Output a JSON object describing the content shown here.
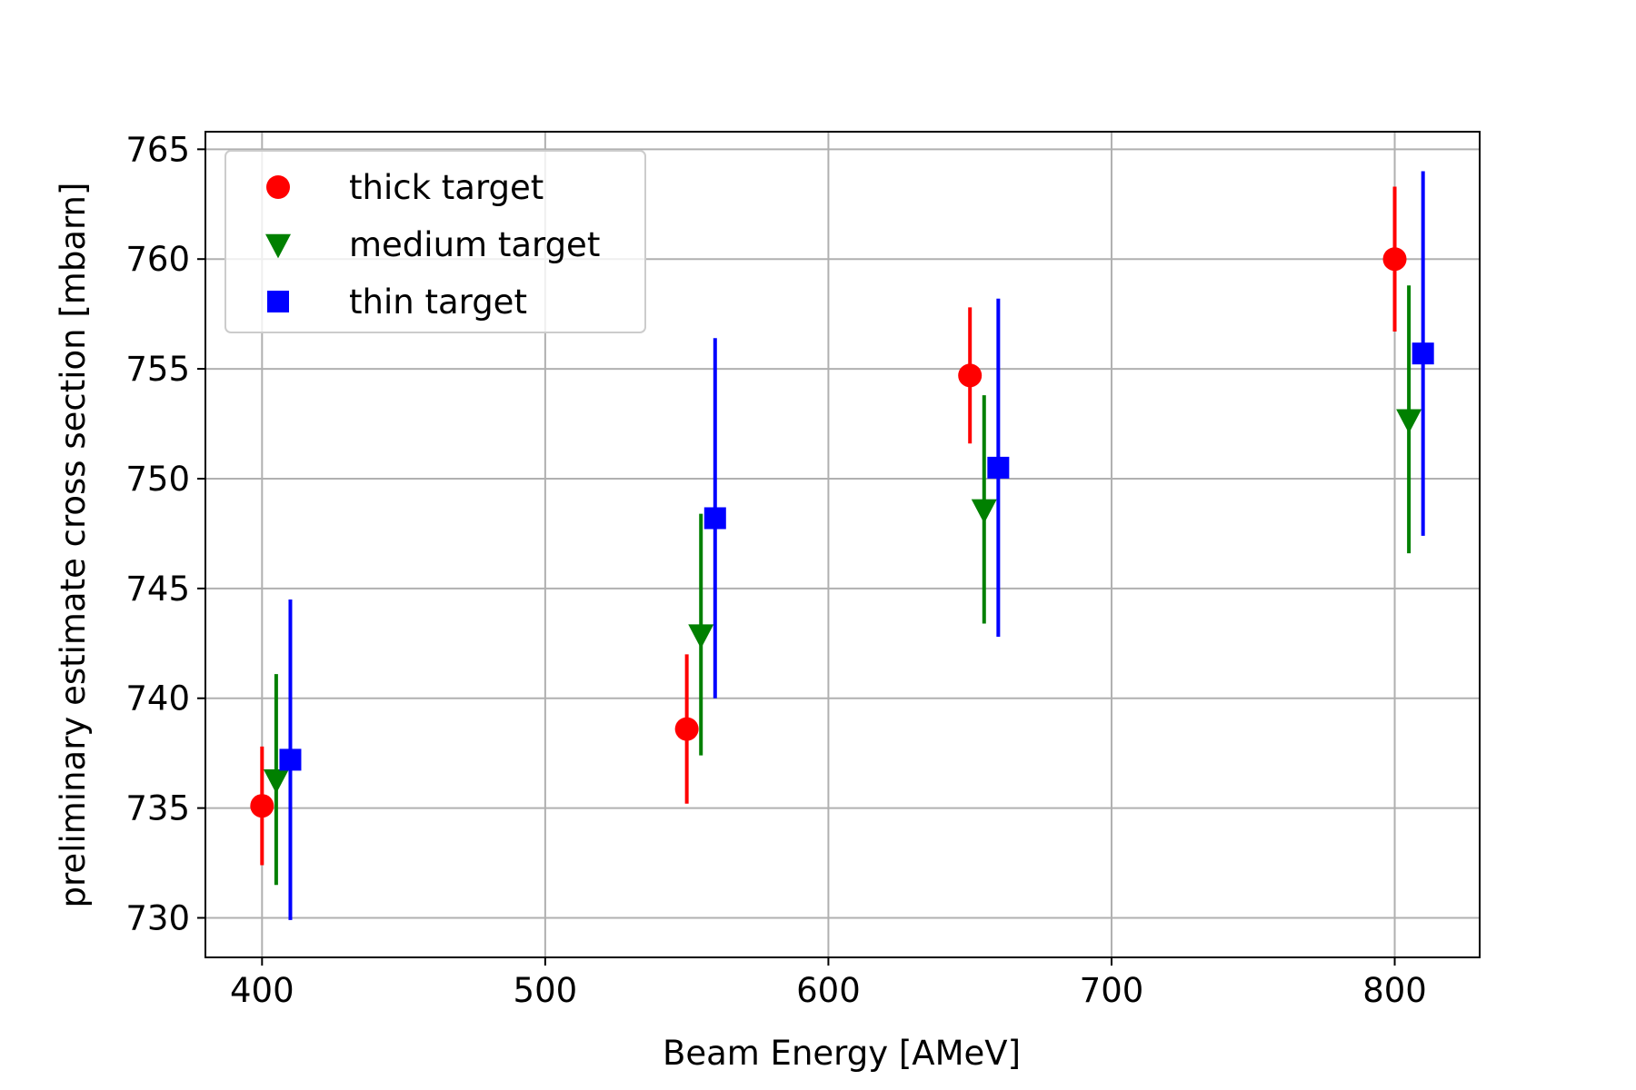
{
  "chart_data": {
    "type": "scatter",
    "title": "",
    "xlabel": "Beam Energy [AMeV]",
    "ylabel": "preliminary estimate cross section [mbarn]",
    "xlim": [
      380,
      830
    ],
    "ylim": [
      728.2,
      765.8
    ],
    "xticks": [
      400,
      500,
      600,
      700,
      800
    ],
    "yticks": [
      730,
      735,
      740,
      745,
      750,
      755,
      760,
      765
    ],
    "grid": true,
    "legend_position": "top-left",
    "series": [
      {
        "name": "thick target",
        "marker": "circle",
        "color": "#ff0000",
        "points": [
          {
            "x": 400,
            "y": 735.1,
            "err": 2.7
          },
          {
            "x": 550,
            "y": 738.6,
            "err": 3.4
          },
          {
            "x": 650,
            "y": 754.7,
            "err": 3.1
          },
          {
            "x": 800,
            "y": 760.0,
            "err": 3.3
          }
        ]
      },
      {
        "name": "medium target",
        "marker": "triangle-down",
        "color": "#008000",
        "points": [
          {
            "x": 405,
            "y": 736.3,
            "err": 4.8
          },
          {
            "x": 555,
            "y": 742.9,
            "err": 5.5
          },
          {
            "x": 655,
            "y": 748.6,
            "err": 5.2
          },
          {
            "x": 805,
            "y": 752.7,
            "err": 6.1
          }
        ]
      },
      {
        "name": "thin target",
        "marker": "square",
        "color": "#0000ff",
        "points": [
          {
            "x": 410,
            "y": 737.2,
            "err": 7.3
          },
          {
            "x": 560,
            "y": 748.2,
            "err": 8.2
          },
          {
            "x": 660,
            "y": 750.5,
            "err": 7.7
          },
          {
            "x": 810,
            "y": 755.7,
            "err": 8.3
          }
        ]
      }
    ]
  }
}
